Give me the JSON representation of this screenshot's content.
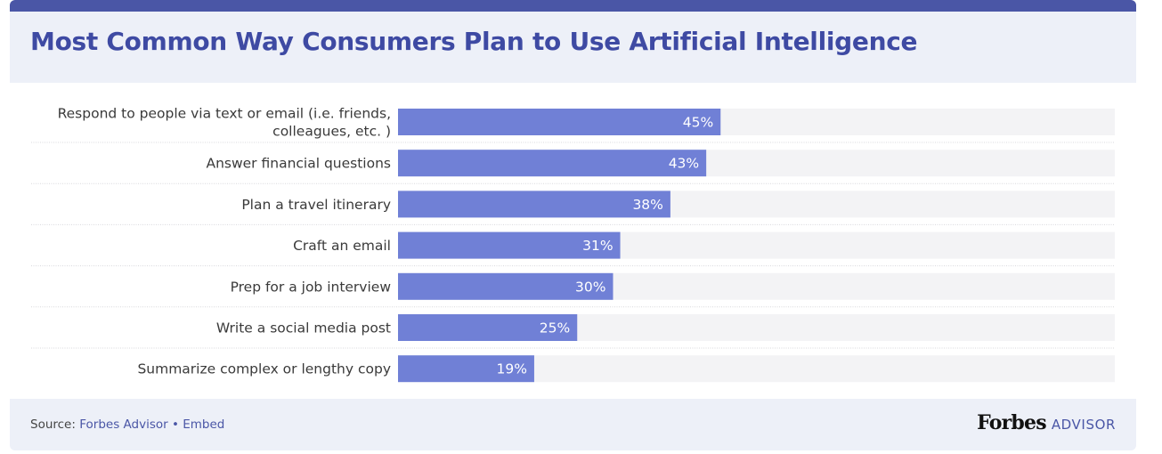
{
  "title": "Most Common Way Consumers Plan to Use Artificial Intelligence",
  "colors": {
    "bar": "#7080d6",
    "track": "#f3f3f5",
    "accent": "#3e4aa3",
    "header_bg": "#edf0f8",
    "topbar": "#4a56a6"
  },
  "chart_data": {
    "type": "bar",
    "orientation": "horizontal",
    "xlim": [
      0,
      100
    ],
    "grid": false,
    "categories": [
      [
        "Respond to people via text or email (i.e. friends,",
        "colleagues, etc. )"
      ],
      [
        "Answer financial questions"
      ],
      [
        "Plan a travel itinerary"
      ],
      [
        "Craft an email"
      ],
      [
        "Prep for a job interview"
      ],
      [
        "Write a social media post"
      ],
      [
        "Summarize complex or lengthy copy"
      ]
    ],
    "values": [
      45,
      43,
      38,
      31,
      30,
      25,
      19
    ],
    "value_labels": [
      "45%",
      "43%",
      "38%",
      "31%",
      "30%",
      "25%",
      "19%"
    ]
  },
  "footer": {
    "source_prefix": "Source:",
    "source_name": "Forbes Advisor",
    "separator": "•",
    "embed": "Embed",
    "brand_name": "Forbes",
    "brand_sub": "ADVISOR"
  }
}
